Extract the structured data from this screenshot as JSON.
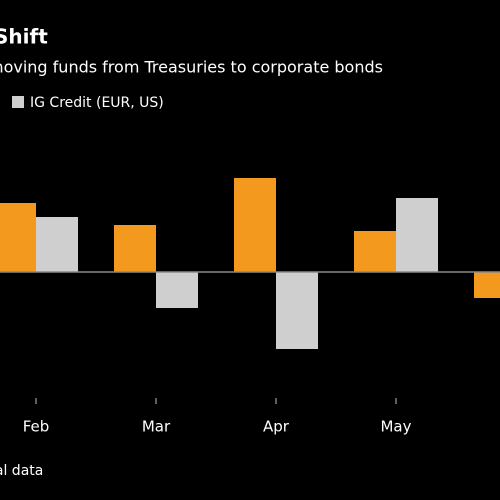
{
  "chart_data": {
    "type": "bar",
    "title": "Shift",
    "subtitle": "moving funds from Treasuries to corporate bonds",
    "source": "pal data",
    "categories": [
      "Feb",
      "Mar",
      "Apr",
      "May",
      null
    ],
    "series": [
      {
        "color": "#f39a1e",
        "values": [
          69,
          47,
          94,
          41,
          -26
        ]
      },
      {
        "name": "IG Credit (EUR, US)",
        "color": "#cfcfcf",
        "values": [
          55,
          -36,
          -77,
          74,
          null
        ]
      }
    ],
    "ylim": [
      -220,
      120
    ],
    "zero_line_color": "#8a8a8a"
  }
}
